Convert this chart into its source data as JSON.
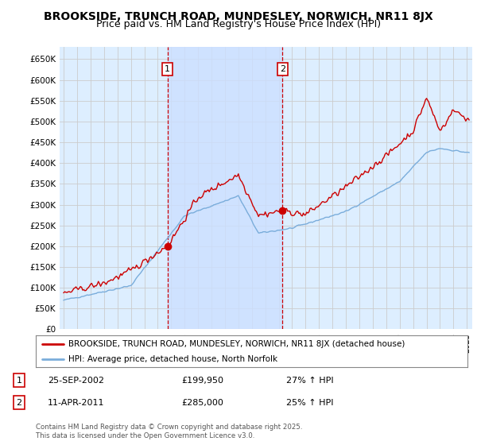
{
  "title": "BROOKSIDE, TRUNCH ROAD, MUNDESLEY, NORWICH, NR11 8JX",
  "subtitle": "Price paid vs. HM Land Registry's House Price Index (HPI)",
  "title_fontsize": 10,
  "subtitle_fontsize": 9,
  "legend_line1": "BROOKSIDE, TRUNCH ROAD, MUNDESLEY, NORWICH, NR11 8JX (detached house)",
  "legend_line2": "HPI: Average price, detached house, North Norfolk",
  "annotation1_label": "1",
  "annotation1_date": "25-SEP-2002",
  "annotation1_price": "£199,950",
  "annotation1_hpi": "27% ↑ HPI",
  "annotation2_label": "2",
  "annotation2_date": "11-APR-2011",
  "annotation2_price": "£285,000",
  "annotation2_hpi": "25% ↑ HPI",
  "footnote": "Contains HM Land Registry data © Crown copyright and database right 2025.\nThis data is licensed under the Open Government Licence v3.0.",
  "red_color": "#cc0000",
  "blue_color": "#7aaddb",
  "grid_color": "#cccccc",
  "background_color": "#ddeeff",
  "shade_color": "#cce0ff",
  "vline_color": "#cc0000",
  "annotation_box_color": "#cc0000",
  "sale1_year": 2002.73,
  "sale2_year": 2011.28,
  "sale1_price": 199950,
  "sale2_price": 285000,
  "ylim_max": 680000,
  "xlim_min": 1994.7,
  "xlim_max": 2025.4
}
